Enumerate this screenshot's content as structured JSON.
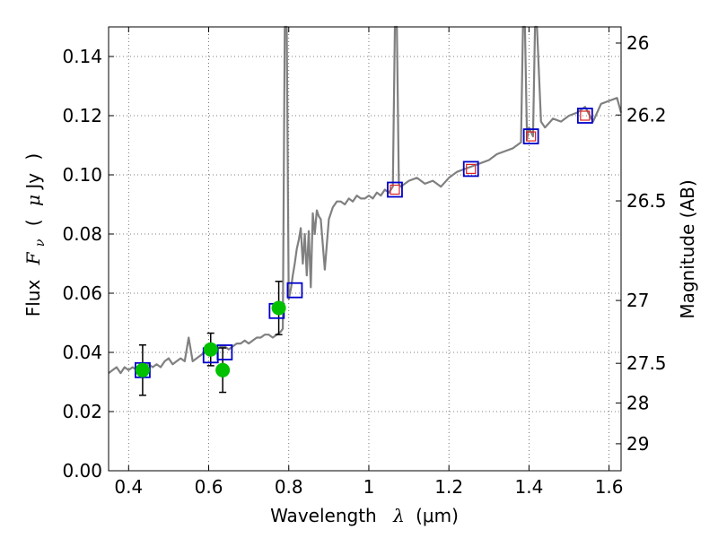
{
  "chart_data": {
    "type": "line",
    "title": "",
    "xlabel_prefix": "Wavelength",
    "xlabel_symbol": "λ",
    "xlabel_unit": "(μm)",
    "ylabel_prefix": "Flux",
    "ylabel_symbol": "F",
    "ylabel_sub": "ν",
    "ylabel_open": "(",
    "ylabel_unit_sym": "μ",
    "ylabel_unit": "Jy",
    "ylabel_close": ")",
    "y2label": "Magnitude (AB)",
    "xlim": [
      0.35,
      1.63
    ],
    "ylim": [
      0.0,
      0.15
    ],
    "grid": true,
    "x_ticks": [
      0.4,
      0.6,
      0.8,
      1.0,
      1.2,
      1.4,
      1.6
    ],
    "x_tick_labels": [
      "0.4",
      "0.6",
      "0.8",
      "1",
      "1.2",
      "1.4",
      "1.6"
    ],
    "y_ticks": [
      0.0,
      0.02,
      0.04,
      0.06,
      0.08,
      0.1,
      0.12,
      0.14
    ],
    "y_tick_labels": [
      "0.00",
      "0.02",
      "0.04",
      "0.06",
      "0.08",
      "0.10",
      "0.12",
      "0.14"
    ],
    "right_ticks": [
      {
        "label": "26",
        "mag": 26.0
      },
      {
        "label": "26.2",
        "mag": 26.2
      },
      {
        "label": "26.5",
        "mag": 26.5
      },
      {
        "label": "27",
        "mag": 27.0
      },
      {
        "label": "27.5",
        "mag": 27.5
      },
      {
        "label": "28",
        "mag": 28.0
      },
      {
        "label": "29",
        "mag": 29.0
      }
    ],
    "colors": {
      "spectrum": "#808080",
      "observed": "#00c000",
      "model_box": "#0000cc",
      "model_box_red": "#dd2222",
      "errorbar": "#000000",
      "grid": "#555555"
    },
    "series": [
      {
        "name": "model spectrum",
        "style": "line",
        "x": [
          0.35,
          0.36,
          0.37,
          0.38,
          0.39,
          0.4,
          0.41,
          0.42,
          0.43,
          0.44,
          0.45,
          0.46,
          0.47,
          0.48,
          0.49,
          0.5,
          0.51,
          0.52,
          0.53,
          0.54,
          0.55,
          0.56,
          0.57,
          0.58,
          0.59,
          0.6,
          0.61,
          0.62,
          0.63,
          0.64,
          0.65,
          0.66,
          0.67,
          0.68,
          0.69,
          0.7,
          0.71,
          0.72,
          0.73,
          0.74,
          0.75,
          0.76,
          0.77,
          0.78,
          0.785,
          0.79,
          0.795,
          0.8,
          0.803,
          0.806,
          0.81,
          0.815,
          0.82,
          0.825,
          0.83,
          0.835,
          0.84,
          0.845,
          0.85,
          0.855,
          0.86,
          0.865,
          0.87,
          0.875,
          0.88,
          0.89,
          0.9,
          0.91,
          0.92,
          0.93,
          0.94,
          0.95,
          0.96,
          0.97,
          0.98,
          0.99,
          1.0,
          1.01,
          1.02,
          1.03,
          1.04,
          1.05,
          1.06,
          1.065,
          1.07,
          1.075,
          1.08,
          1.09,
          1.1,
          1.12,
          1.14,
          1.16,
          1.18,
          1.2,
          1.22,
          1.24,
          1.26,
          1.28,
          1.3,
          1.32,
          1.34,
          1.36,
          1.37,
          1.38,
          1.385,
          1.39,
          1.395,
          1.4,
          1.41,
          1.415,
          1.42,
          1.43,
          1.44,
          1.46,
          1.48,
          1.5,
          1.52,
          1.54,
          1.56,
          1.58,
          1.6,
          1.62,
          1.63
        ],
        "y": [
          0.033,
          0.034,
          0.035,
          0.033,
          0.035,
          0.034,
          0.035,
          0.034,
          0.034,
          0.035,
          0.036,
          0.035,
          0.036,
          0.035,
          0.037,
          0.038,
          0.036,
          0.037,
          0.038,
          0.037,
          0.045,
          0.037,
          0.038,
          0.039,
          0.04,
          0.041,
          0.04,
          0.041,
          0.042,
          0.042,
          0.041,
          0.042,
          0.043,
          0.043,
          0.044,
          0.043,
          0.044,
          0.045,
          0.045,
          0.046,
          0.046,
          0.045,
          0.046,
          0.047,
          0.048,
          0.152,
          0.15,
          0.058,
          0.06,
          0.062,
          0.066,
          0.07,
          0.075,
          0.078,
          0.082,
          0.07,
          0.08,
          0.066,
          0.081,
          0.062,
          0.087,
          0.08,
          0.088,
          0.086,
          0.085,
          0.068,
          0.085,
          0.089,
          0.091,
          0.091,
          0.09,
          0.092,
          0.091,
          0.093,
          0.092,
          0.092,
          0.093,
          0.092,
          0.094,
          0.093,
          0.095,
          0.094,
          0.096,
          0.152,
          0.152,
          0.097,
          0.096,
          0.097,
          0.098,
          0.099,
          0.097,
          0.098,
          0.096,
          0.099,
          0.101,
          0.102,
          0.103,
          0.104,
          0.105,
          0.107,
          0.108,
          0.109,
          0.11,
          0.111,
          0.152,
          0.152,
          0.112,
          0.116,
          0.113,
          0.152,
          0.152,
          0.118,
          0.116,
          0.119,
          0.118,
          0.12,
          0.121,
          0.123,
          0.118,
          0.124,
          0.125,
          0.126,
          0.121
        ]
      },
      {
        "name": "observed photometry",
        "style": "circle",
        "x": [
          0.435,
          0.605,
          0.635,
          0.775
        ],
        "y": [
          0.034,
          0.041,
          0.034,
          0.055
        ],
        "yerr": [
          0.0085,
          0.0055,
          0.0075,
          0.009
        ]
      },
      {
        "name": "model photometry",
        "style": "square",
        "x": [
          0.435,
          0.605,
          0.64,
          0.77,
          0.815,
          1.065,
          1.255,
          1.405,
          1.54
        ],
        "y": [
          0.034,
          0.039,
          0.04,
          0.054,
          0.061,
          0.095,
          0.102,
          0.113,
          0.12
        ],
        "inner_red": [
          false,
          false,
          false,
          false,
          false,
          true,
          true,
          true,
          true
        ]
      }
    ]
  }
}
